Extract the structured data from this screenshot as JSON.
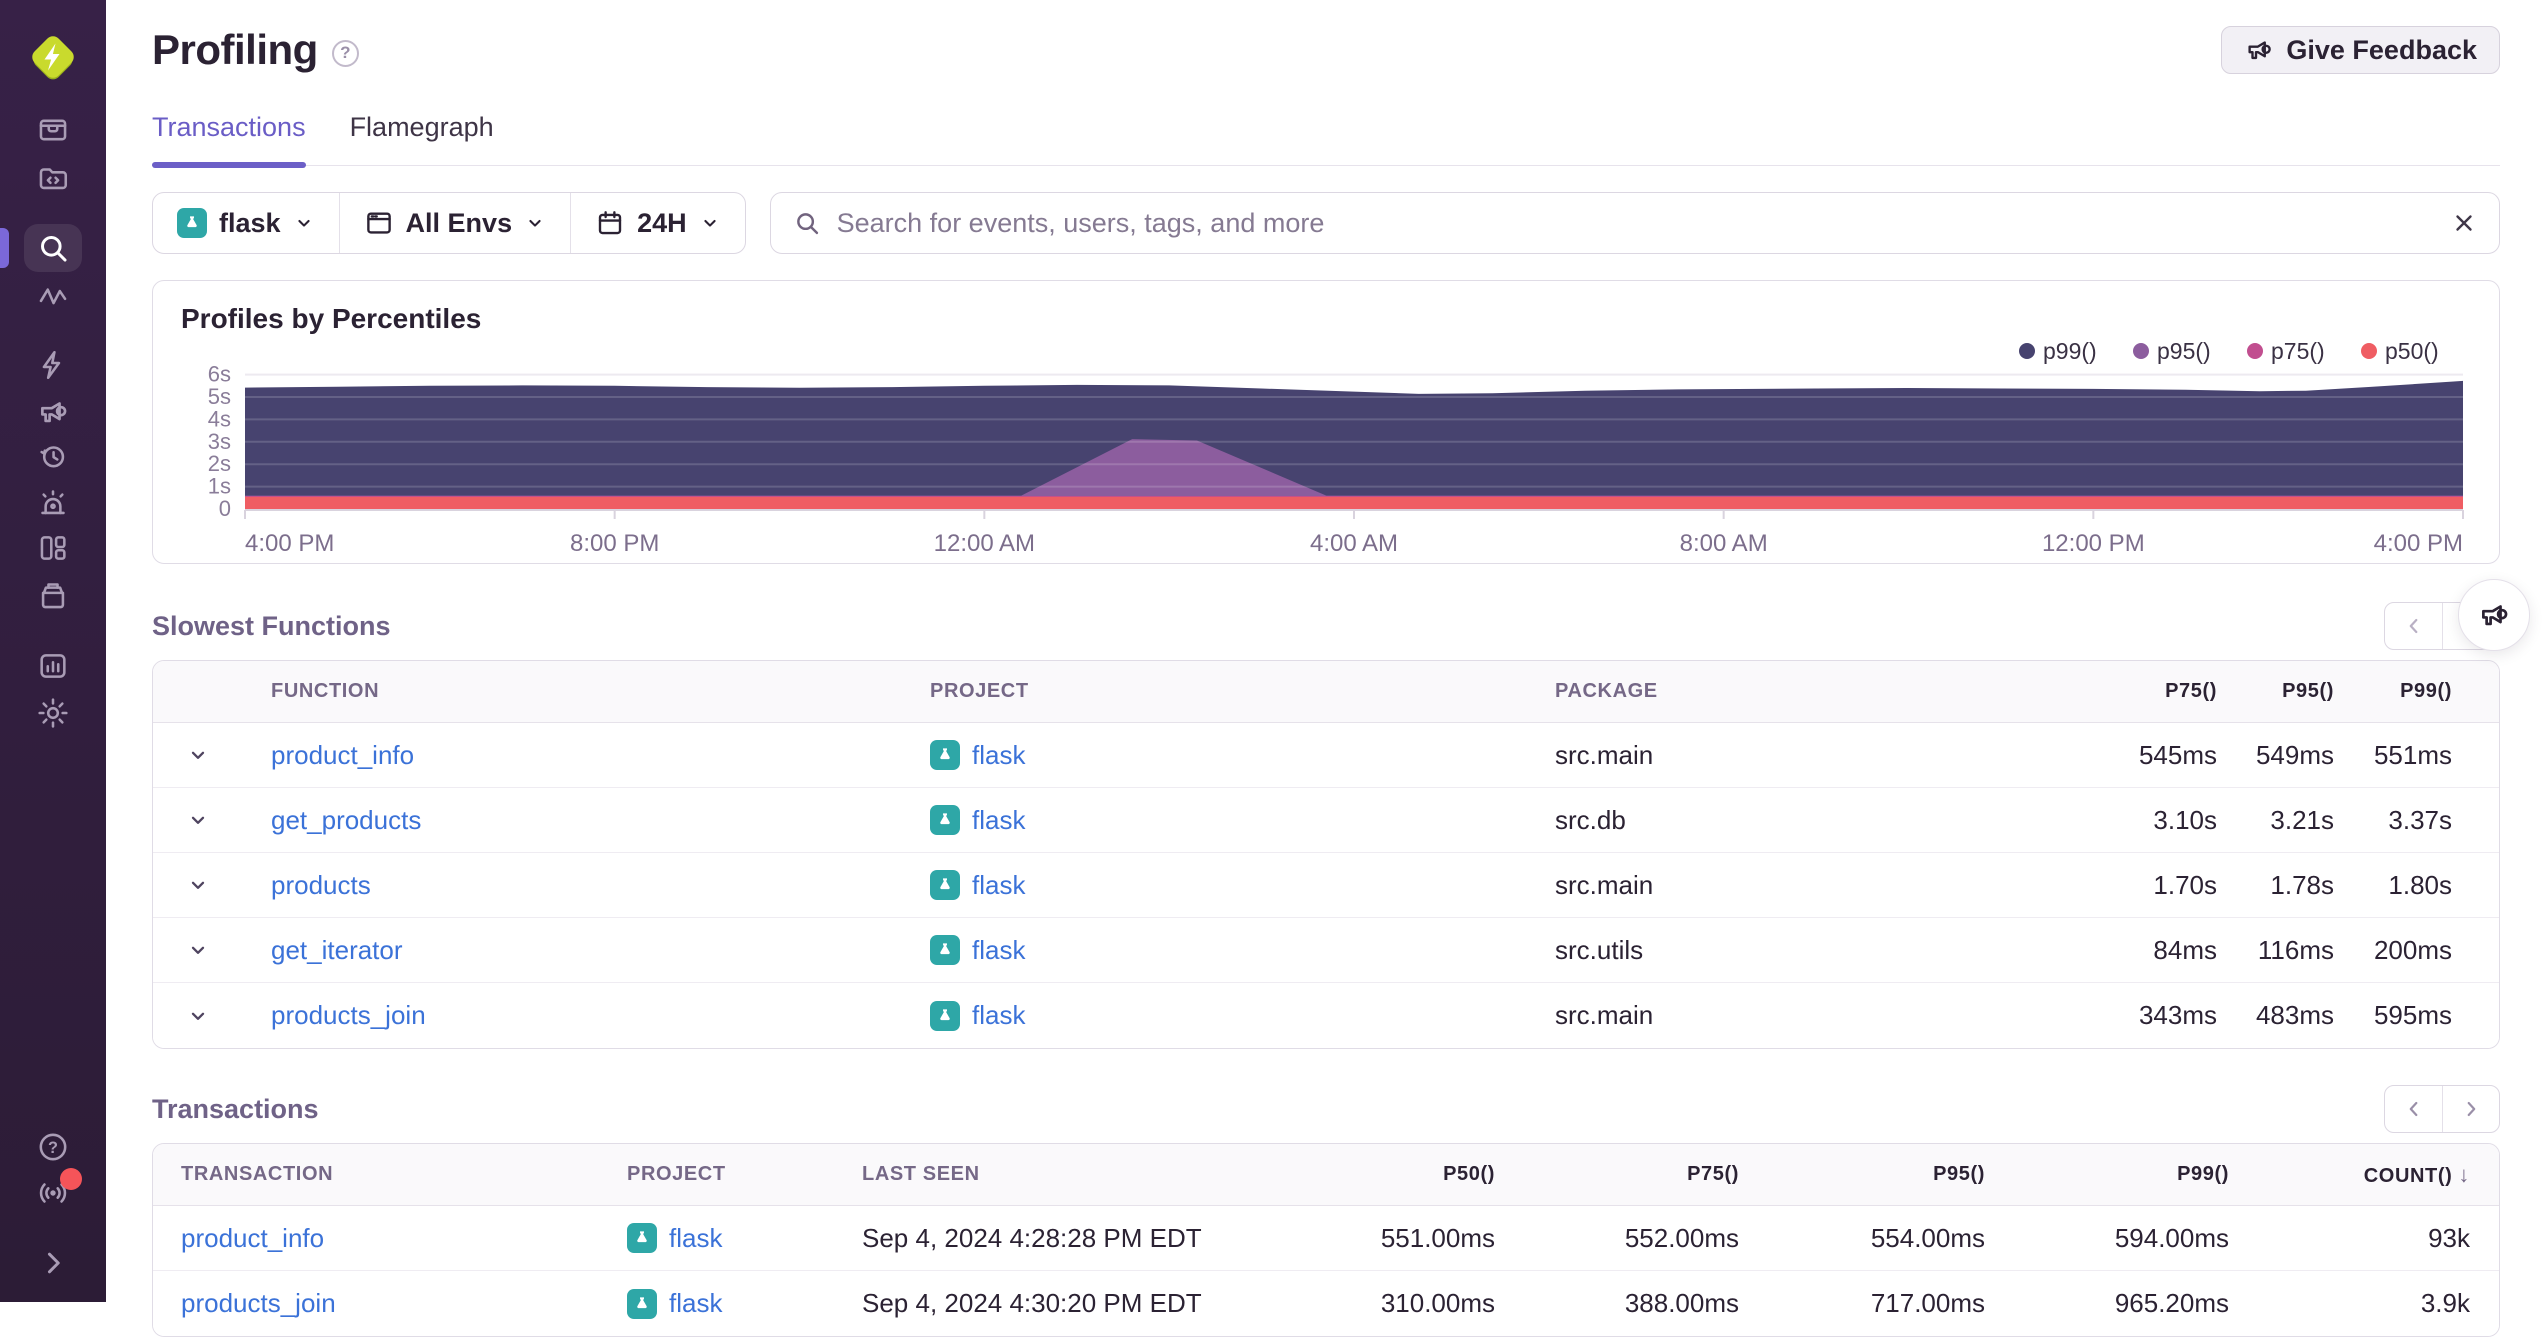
{
  "sidebar": {
    "icons": [
      "logo",
      "issues",
      "projects",
      "explore",
      "traces",
      "insights",
      "feedback",
      "replays",
      "alerts",
      "dashboards",
      "releases",
      "stats",
      "settings",
      "help",
      "whats-new",
      "collapse"
    ],
    "active_item": "explore",
    "notification_color": "#f55459",
    "help_glyph": "?"
  },
  "header": {
    "title": "Profiling",
    "help_glyph": "?",
    "give_feedback_label": "Give Feedback"
  },
  "tabs": {
    "items": [
      {
        "label": "Transactions",
        "active": true
      },
      {
        "label": "Flamegraph",
        "active": false
      }
    ]
  },
  "filters": {
    "project": "flask",
    "environment": "All Envs",
    "date_range": "24H"
  },
  "search": {
    "placeholder": "Search for events, users, tags, and more"
  },
  "chart_data": {
    "type": "area",
    "title": "Profiles by Percentiles",
    "x_axis": {
      "unit": "time",
      "range_hours": 24,
      "ticks": [
        "4:00 PM",
        "8:00 PM",
        "12:00 AM",
        "4:00 AM",
        "8:00 AM",
        "12:00 PM",
        "4:00 PM"
      ]
    },
    "y_axis": {
      "ticks": [
        "0",
        "1s",
        "2s",
        "3s",
        "4s",
        "5s",
        "6s"
      ],
      "max_seconds": 6
    },
    "legend": {
      "position": "top-right"
    },
    "series": [
      {
        "name": "p99()",
        "color": "#47436f",
        "points": [
          [
            0,
            5.42
          ],
          [
            1,
            5.46
          ],
          [
            2,
            5.5
          ],
          [
            3,
            5.52
          ],
          [
            4,
            5.5
          ],
          [
            5,
            5.44
          ],
          [
            6,
            5.41
          ],
          [
            7,
            5.44
          ],
          [
            8,
            5.5
          ],
          [
            9,
            5.54
          ],
          [
            10,
            5.52
          ],
          [
            11,
            5.38
          ],
          [
            12,
            5.24
          ],
          [
            12.7,
            5.14
          ],
          [
            13.5,
            5.17
          ],
          [
            14.5,
            5.28
          ],
          [
            15.5,
            5.34
          ],
          [
            17,
            5.38
          ],
          [
            18,
            5.4
          ],
          [
            19,
            5.38
          ],
          [
            20,
            5.36
          ],
          [
            21,
            5.32
          ],
          [
            21.8,
            5.26
          ],
          [
            22.3,
            5.28
          ],
          [
            23,
            5.45
          ],
          [
            24,
            5.72
          ]
        ]
      },
      {
        "name": "p95()",
        "color": "#8c5d9e",
        "points": [
          [
            0,
            0.6
          ],
          [
            8.4,
            0.6
          ],
          [
            9.6,
            3.12
          ],
          [
            10.3,
            3.06
          ],
          [
            11.7,
            0.6
          ],
          [
            24,
            0.6
          ]
        ]
      },
      {
        "name": "p75()",
        "color": "#c14e8f",
        "points": [
          [
            0,
            0.58
          ],
          [
            24,
            0.58
          ]
        ]
      },
      {
        "name": "p50()",
        "color": "#ef5d63",
        "points": [
          [
            0,
            0.54
          ],
          [
            24,
            0.54
          ]
        ]
      }
    ]
  },
  "slowest_functions": {
    "title": "Slowest Functions",
    "columns": [
      "FUNCTION",
      "PROJECT",
      "PACKAGE",
      "P75()",
      "P95()",
      "P99()"
    ],
    "rows": [
      {
        "function": "product_info",
        "project": "flask",
        "package": "src.main",
        "p75": "545ms",
        "p95": "549ms",
        "p99": "551ms"
      },
      {
        "function": "get_products",
        "project": "flask",
        "package": "src.db",
        "p75": "3.10s",
        "p95": "3.21s",
        "p99": "3.37s"
      },
      {
        "function": "products",
        "project": "flask",
        "package": "src.main",
        "p75": "1.70s",
        "p95": "1.78s",
        "p99": "1.80s"
      },
      {
        "function": "get_iterator",
        "project": "flask",
        "package": "src.utils",
        "p75": "84ms",
        "p95": "116ms",
        "p99": "200ms"
      },
      {
        "function": "products_join",
        "project": "flask",
        "package": "src.main",
        "p75": "343ms",
        "p95": "483ms",
        "p99": "595ms"
      }
    ]
  },
  "transactions": {
    "title": "Transactions",
    "columns": [
      "TRANSACTION",
      "PROJECT",
      "LAST SEEN",
      "P50()",
      "P75()",
      "P95()",
      "P99()",
      "COUNT()"
    ],
    "count_sort_indicator": "↓",
    "rows": [
      {
        "transaction": "product_info",
        "project": "flask",
        "last_seen": "Sep 4, 2024 4:28:28 PM EDT",
        "p50": "551.00ms",
        "p75": "552.00ms",
        "p95": "554.00ms",
        "p99": "594.00ms",
        "count": "93k"
      },
      {
        "transaction": "products_join",
        "project": "flask",
        "last_seen": "Sep 4, 2024 4:30:20 PM EDT",
        "p50": "310.00ms",
        "p75": "388.00ms",
        "p95": "717.00ms",
        "p99": "965.20ms",
        "count": "3.9k"
      }
    ]
  }
}
